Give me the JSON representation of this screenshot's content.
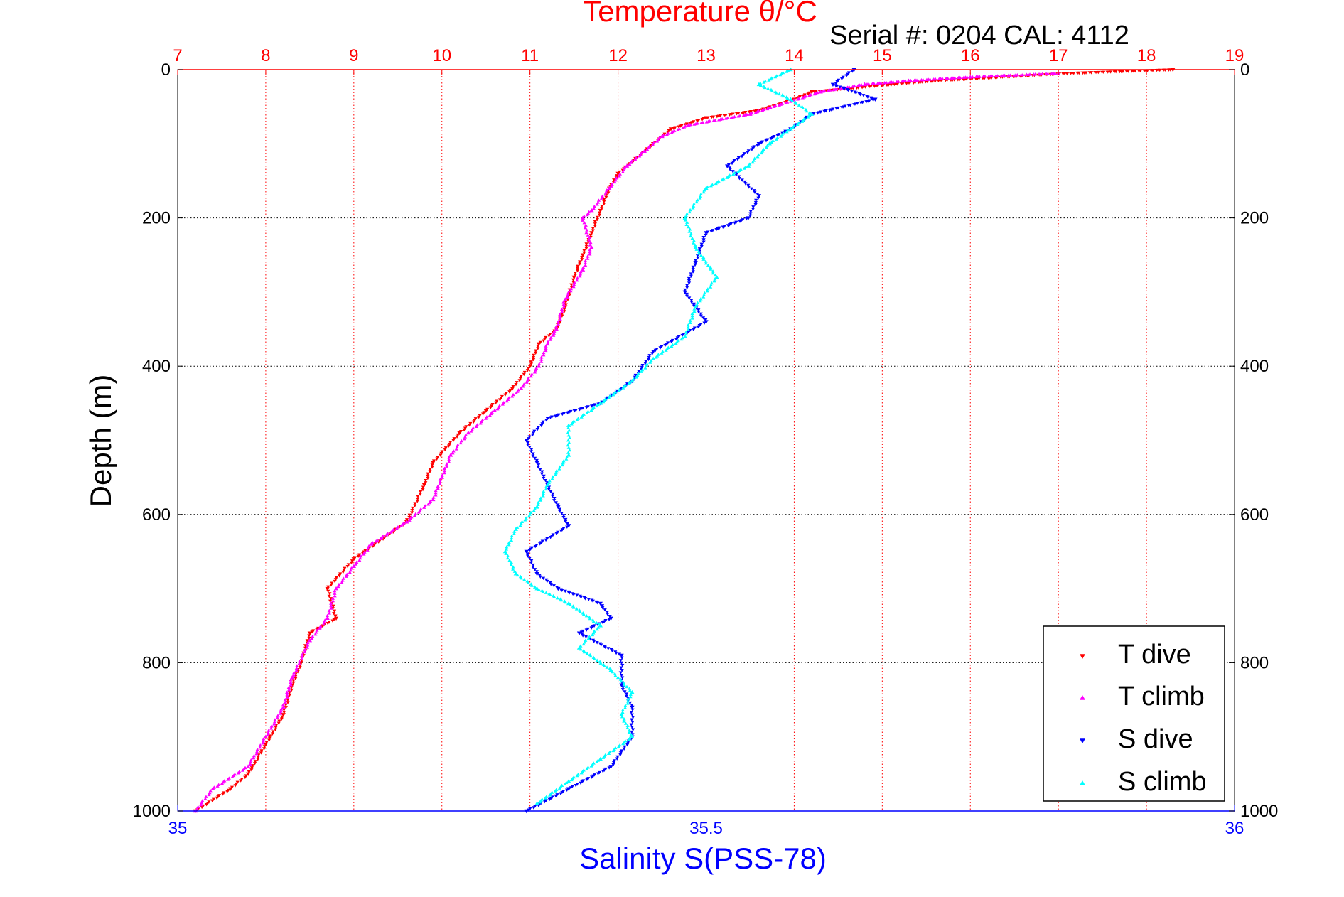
{
  "chart_data": {
    "type": "scatter",
    "title": "Temperature θ/°C",
    "annotation": "Serial #: 0204  CAL: 4112",
    "ylabel": "Depth (m)",
    "xlabel_bottom": "Salinity S(PSS-78)",
    "depth_ticks": [
      0,
      200,
      400,
      600,
      800,
      1000
    ],
    "depth_tick_labels": [
      "0",
      "200",
      "400",
      "600",
      "800",
      "1000"
    ],
    "ylim": [
      0,
      1000
    ],
    "temperature_ticks": [
      7,
      8,
      9,
      10,
      11,
      12,
      13,
      14,
      15,
      16,
      17,
      18,
      19
    ],
    "temperature_tick_labels": [
      "7",
      "8",
      "9",
      "10",
      "11",
      "12",
      "13",
      "14",
      "15",
      "16",
      "17",
      "18",
      "19"
    ],
    "temperature_lim": [
      7,
      19
    ],
    "salinity_ticks": [
      35,
      35.5,
      36
    ],
    "salinity_tick_labels": [
      "35",
      "35.5",
      "36"
    ],
    "salinity_lim": [
      35,
      36
    ],
    "grid": true,
    "legend_position": "bottom-right",
    "colors": {
      "temperature_axis": "#ff0000",
      "salinity_axis": "#0000ff",
      "t_dive": "#ff0000",
      "t_climb": "#ff00ff",
      "s_dive": "#0000ff",
      "s_climb": "#00ffff"
    },
    "series": [
      {
        "name": "T dive",
        "axis": "temperature",
        "marker": "triangle-down",
        "points": [
          [
            18.3,
            0
          ],
          [
            17.1,
            5
          ],
          [
            15.6,
            15
          ],
          [
            15.1,
            20
          ],
          [
            14.2,
            30
          ],
          [
            14.0,
            40
          ],
          [
            13.6,
            55
          ],
          [
            13.0,
            65
          ],
          [
            12.6,
            80
          ],
          [
            12.4,
            100
          ],
          [
            12.2,
            120
          ],
          [
            12.0,
            140
          ],
          [
            11.9,
            160
          ],
          [
            11.8,
            190
          ],
          [
            11.7,
            220
          ],
          [
            11.6,
            250
          ],
          [
            11.5,
            280
          ],
          [
            11.4,
            320
          ],
          [
            11.3,
            350
          ],
          [
            11.1,
            370
          ],
          [
            11.0,
            400
          ],
          [
            10.8,
            430
          ],
          [
            10.5,
            460
          ],
          [
            10.2,
            490
          ],
          [
            9.9,
            530
          ],
          [
            9.8,
            560
          ],
          [
            9.6,
            610
          ],
          [
            9.0,
            660
          ],
          [
            8.7,
            700
          ],
          [
            8.8,
            740
          ],
          [
            8.5,
            760
          ],
          [
            8.4,
            800
          ],
          [
            8.3,
            830
          ],
          [
            8.2,
            870
          ],
          [
            8.0,
            910
          ],
          [
            7.8,
            950
          ],
          [
            7.6,
            970
          ],
          [
            7.2,
            1000
          ]
        ]
      },
      {
        "name": "T climb",
        "axis": "temperature",
        "marker": "triangle-up",
        "points": [
          [
            17.0,
            5
          ],
          [
            16.0,
            10
          ],
          [
            15.3,
            15
          ],
          [
            14.8,
            20
          ],
          [
            14.3,
            30
          ],
          [
            13.5,
            60
          ],
          [
            12.8,
            75
          ],
          [
            12.5,
            90
          ],
          [
            12.3,
            110
          ],
          [
            12.1,
            130
          ],
          [
            11.9,
            160
          ],
          [
            11.7,
            190
          ],
          [
            11.6,
            200
          ],
          [
            11.7,
            240
          ],
          [
            11.6,
            270
          ],
          [
            11.4,
            310
          ],
          [
            11.3,
            350
          ],
          [
            11.2,
            370
          ],
          [
            11.1,
            400
          ],
          [
            10.9,
            430
          ],
          [
            10.6,
            460
          ],
          [
            10.3,
            490
          ],
          [
            10.1,
            520
          ],
          [
            10.0,
            550
          ],
          [
            9.9,
            580
          ],
          [
            9.6,
            610
          ],
          [
            9.2,
            640
          ],
          [
            9.0,
            670
          ],
          [
            8.8,
            700
          ],
          [
            8.7,
            740
          ],
          [
            8.5,
            770
          ],
          [
            8.3,
            820
          ],
          [
            8.2,
            860
          ],
          [
            8.0,
            900
          ],
          [
            7.8,
            940
          ],
          [
            7.4,
            970
          ],
          [
            7.2,
            1000
          ]
        ]
      },
      {
        "name": "S dive",
        "axis": "salinity",
        "marker": "triangle-down",
        "points": [
          [
            35.64,
            0
          ],
          [
            35.62,
            20
          ],
          [
            35.66,
            40
          ],
          [
            35.6,
            60
          ],
          [
            35.58,
            80
          ],
          [
            35.55,
            100
          ],
          [
            35.52,
            130
          ],
          [
            35.55,
            170
          ],
          [
            35.54,
            200
          ],
          [
            35.5,
            220
          ],
          [
            35.49,
            260
          ],
          [
            35.48,
            300
          ],
          [
            35.5,
            340
          ],
          [
            35.45,
            380
          ],
          [
            35.43,
            420
          ],
          [
            35.4,
            450
          ],
          [
            35.35,
            470
          ],
          [
            35.33,
            500
          ],
          [
            35.34,
            530
          ],
          [
            35.35,
            560
          ],
          [
            35.36,
            590
          ],
          [
            35.37,
            615
          ],
          [
            35.33,
            650
          ],
          [
            35.34,
            680
          ],
          [
            35.36,
            700
          ],
          [
            35.4,
            720
          ],
          [
            35.41,
            740
          ],
          [
            35.38,
            760
          ],
          [
            35.42,
            790
          ],
          [
            35.42,
            830
          ],
          [
            35.43,
            860
          ],
          [
            35.43,
            900
          ],
          [
            35.41,
            940
          ],
          [
            35.37,
            970
          ],
          [
            35.33,
            1000
          ]
        ]
      },
      {
        "name": "S climb",
        "axis": "salinity",
        "marker": "triangle-up",
        "points": [
          [
            35.58,
            0
          ],
          [
            35.55,
            20
          ],
          [
            35.58,
            40
          ],
          [
            35.6,
            60
          ],
          [
            35.58,
            80
          ],
          [
            35.56,
            100
          ],
          [
            35.54,
            130
          ],
          [
            35.5,
            160
          ],
          [
            35.48,
            200
          ],
          [
            35.49,
            240
          ],
          [
            35.51,
            280
          ],
          [
            35.49,
            320
          ],
          [
            35.48,
            360
          ],
          [
            35.45,
            390
          ],
          [
            35.43,
            420
          ],
          [
            35.4,
            450
          ],
          [
            35.37,
            480
          ],
          [
            35.37,
            520
          ],
          [
            35.35,
            560
          ],
          [
            35.34,
            590
          ],
          [
            35.32,
            620
          ],
          [
            35.31,
            650
          ],
          [
            35.32,
            680
          ],
          [
            35.34,
            700
          ],
          [
            35.37,
            720
          ],
          [
            35.4,
            750
          ],
          [
            35.38,
            780
          ],
          [
            35.41,
            810
          ],
          [
            35.43,
            840
          ],
          [
            35.42,
            870
          ],
          [
            35.43,
            900
          ],
          [
            35.4,
            930
          ],
          [
            35.37,
            960
          ],
          [
            35.34,
            990
          ]
        ]
      }
    ]
  }
}
